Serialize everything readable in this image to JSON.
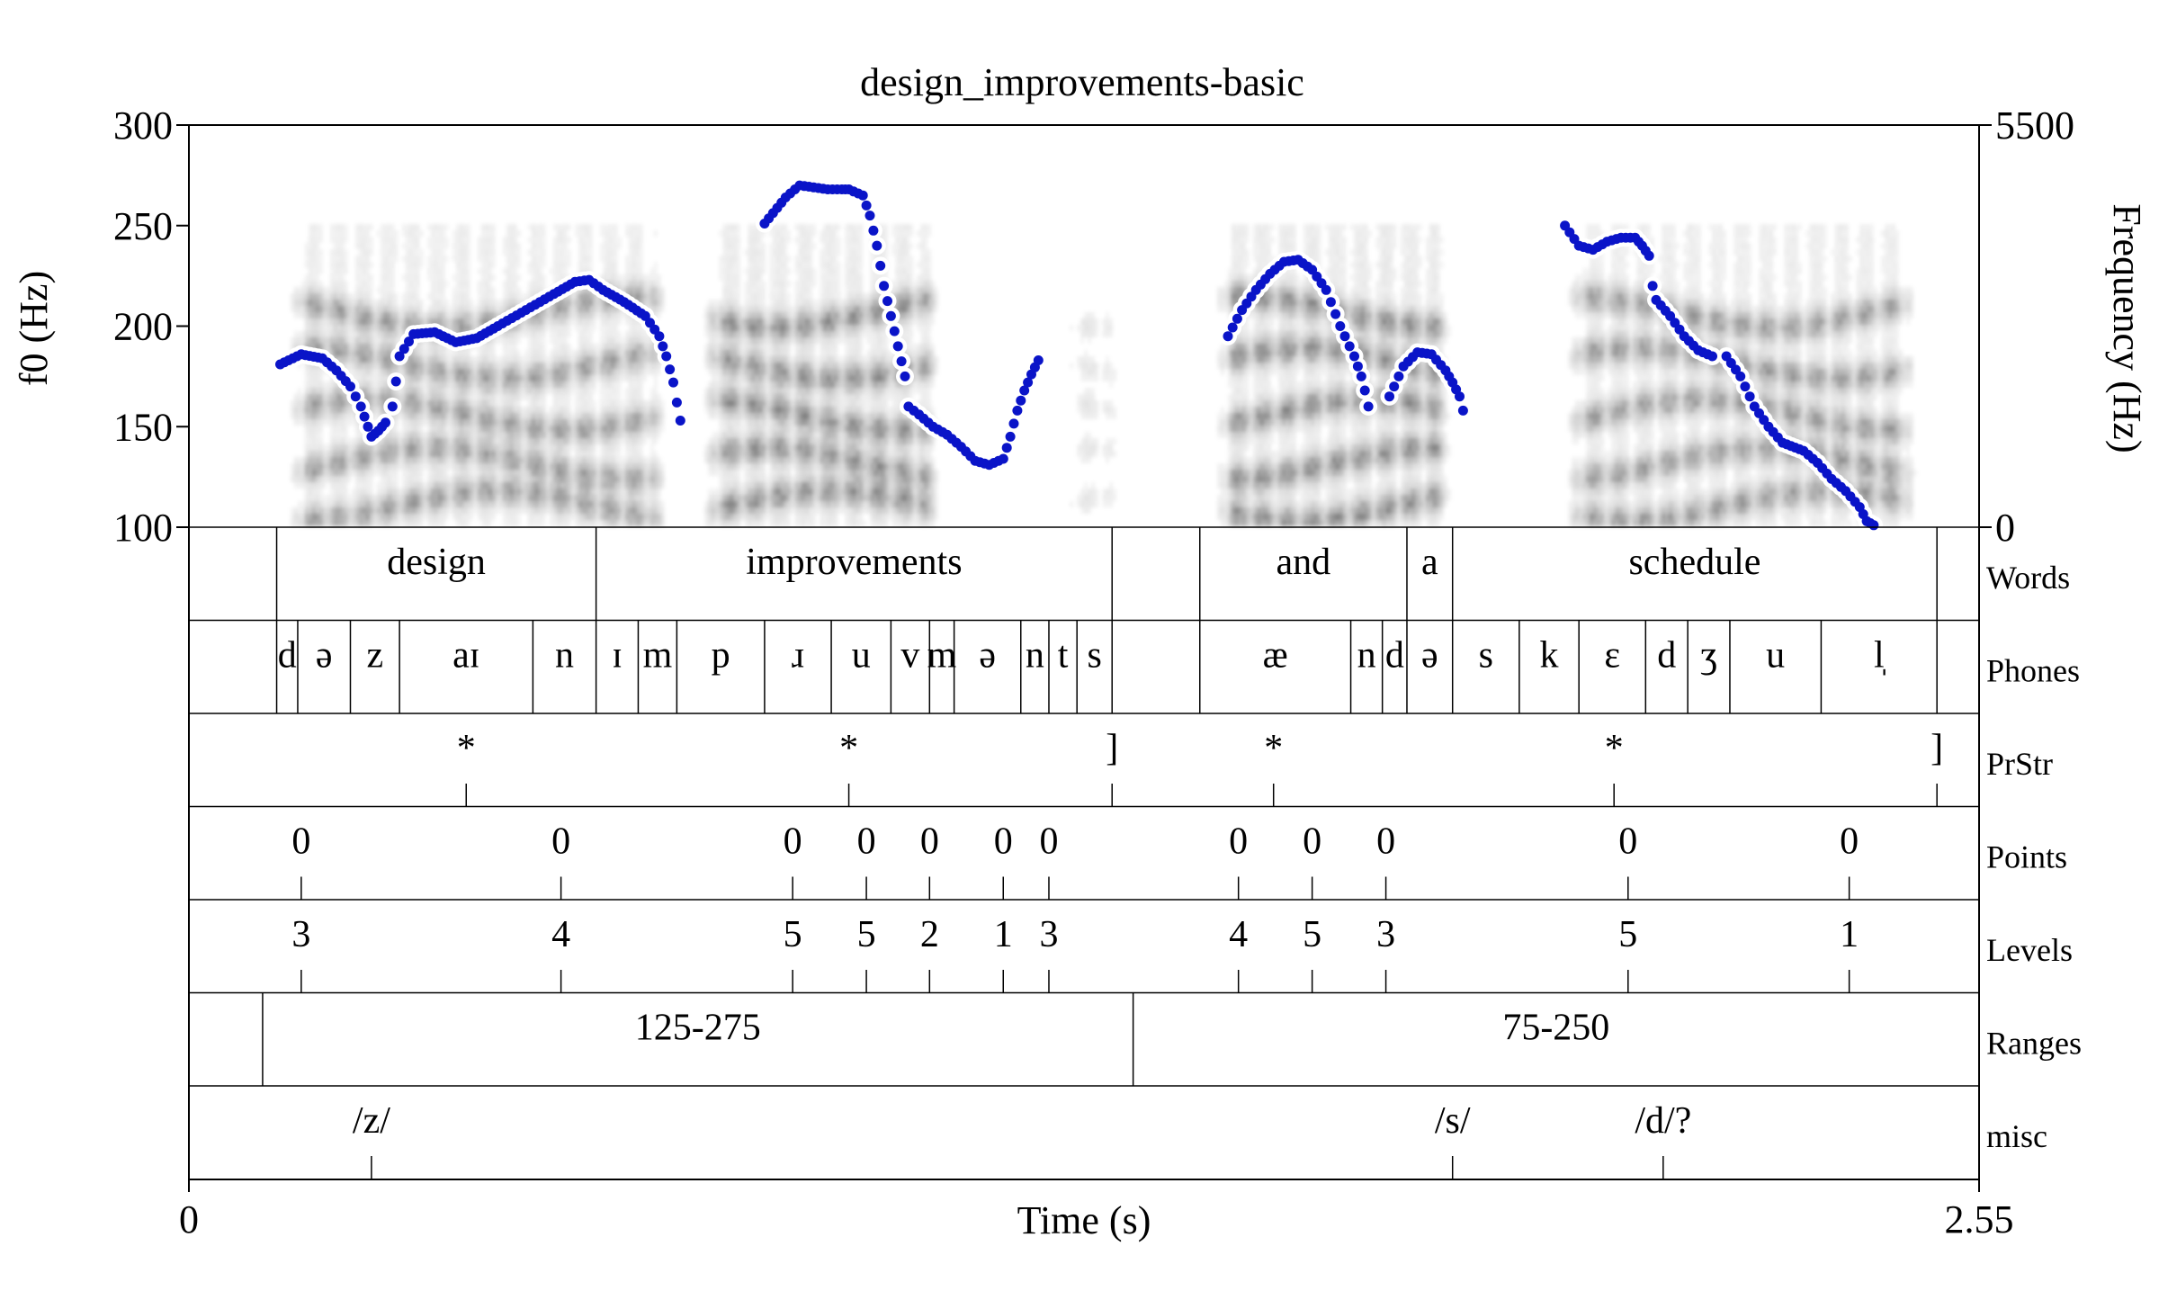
{
  "chart_data": {
    "type": "scatter",
    "title": "design_improvements-basic",
    "xlabel": "Time (s)",
    "ylabel": "f0 (Hz)",
    "ylabel_right": "Frequency (Hz)",
    "xlim": [
      0,
      2.55
    ],
    "ylim": [
      100,
      300
    ],
    "ylim_right": [
      0,
      5500
    ],
    "x_ticks": [
      "0",
      "2.55"
    ],
    "y_ticks": [
      {
        "value": 100,
        "label": "100"
      },
      {
        "value": 150,
        "label": "150"
      },
      {
        "value": 200,
        "label": "200"
      },
      {
        "value": 250,
        "label": "250"
      },
      {
        "value": 300,
        "label": "300"
      }
    ],
    "y_ticks_right": [
      {
        "value": 0,
        "label": "0"
      },
      {
        "value": 5500,
        "label": "5500"
      }
    ],
    "colors": {
      "pitch": "#0a14c8",
      "halo": "#ffffff",
      "spectrogram": "#000000"
    },
    "spectrogram_segments": [
      {
        "start": 0.14,
        "end": 0.68,
        "intensity": 0.75
      },
      {
        "start": 0.73,
        "end": 1.07,
        "intensity": 0.85
      },
      {
        "start": 1.24,
        "end": 1.33,
        "intensity": 0.2
      },
      {
        "start": 1.46,
        "end": 1.8,
        "intensity": 0.85
      },
      {
        "start": 1.96,
        "end": 2.46,
        "intensity": 0.75
      }
    ],
    "series": [
      {
        "segments": [
          [
            [
              0.13,
              181
            ],
            [
              0.16,
              186
            ],
            [
              0.19,
              184
            ],
            [
              0.21,
              178
            ],
            [
              0.23,
              170
            ],
            [
              0.245,
              160
            ],
            [
              0.255,
              150
            ],
            [
              0.26,
              145
            ],
            [
              0.27,
              148
            ],
            [
              0.28,
              152
            ]
          ],
          [
            [
              0.29,
              160
            ],
            [
              0.3,
              185
            ],
            [
              0.32,
              196
            ],
            [
              0.35,
              197
            ],
            [
              0.38,
              192
            ],
            [
              0.41,
              194
            ],
            [
              0.44,
              200
            ],
            [
              0.48,
              208
            ],
            [
              0.52,
              216
            ],
            [
              0.55,
              222
            ],
            [
              0.57,
              223
            ],
            [
              0.59,
              218
            ],
            [
              0.62,
              212
            ],
            [
              0.65,
              205
            ],
            [
              0.67,
              195
            ],
            [
              0.68,
              185
            ],
            [
              0.69,
              172
            ],
            [
              0.695,
              162
            ],
            [
              0.7,
              153
            ]
          ],
          [
            [
              0.82,
              251
            ],
            [
              0.85,
              264
            ],
            [
              0.87,
              270
            ],
            [
              0.89,
              269
            ],
            [
              0.91,
              268
            ],
            [
              0.93,
              268
            ],
            [
              0.94,
              268
            ],
            [
              0.96,
              265
            ],
            [
              0.97,
              255
            ],
            [
              0.98,
              240
            ],
            [
              0.99,
              220
            ],
            [
              1.0,
              205
            ],
            [
              1.01,
              190
            ],
            [
              1.02,
              175
            ],
            [
              1.025,
              160
            ],
            [
              1.04,
              156
            ],
            [
              1.06,
              150
            ],
            [
              1.08,
              146
            ],
            [
              1.1,
              140
            ],
            [
              1.12,
              133
            ],
            [
              1.14,
              131
            ],
            [
              1.16,
              134
            ],
            [
              1.17,
              145
            ],
            [
              1.18,
              158
            ],
            [
              1.19,
              168
            ],
            [
              1.2,
              176
            ],
            [
              1.21,
              183
            ]
          ],
          [
            [
              1.48,
              195
            ],
            [
              1.5,
              208
            ],
            [
              1.52,
              218
            ],
            [
              1.54,
              226
            ],
            [
              1.56,
              232
            ],
            [
              1.58,
              233
            ],
            [
              1.6,
              228
            ],
            [
              1.62,
              218
            ],
            [
              1.64,
              200
            ],
            [
              1.66,
              185
            ],
            [
              1.67,
              175
            ],
            [
              1.675,
              168
            ],
            [
              1.68,
              160
            ]
          ],
          [
            [
              1.71,
              165
            ],
            [
              1.73,
              180
            ],
            [
              1.75,
              187
            ],
            [
              1.77,
              186
            ],
            [
              1.79,
              178
            ],
            [
              1.8,
              172
            ],
            [
              1.81,
              165
            ],
            [
              1.815,
              158
            ]
          ],
          [
            [
              1.96,
              250
            ],
            [
              1.98,
              240
            ],
            [
              2.0,
              238
            ],
            [
              2.02,
              242
            ],
            [
              2.04,
              244
            ],
            [
              2.06,
              244
            ],
            [
              2.07,
              240
            ],
            [
              2.08,
              235
            ],
            [
              2.085,
              220
            ],
            [
              2.09,
              213
            ],
            [
              2.11,
              205
            ],
            [
              2.13,
              195
            ],
            [
              2.15,
              188
            ],
            [
              2.17,
              185
            ]
          ],
          [
            [
              2.19,
              185
            ],
            [
              2.21,
              175
            ],
            [
              2.23,
              160
            ],
            [
              2.25,
              150
            ],
            [
              2.27,
              142
            ],
            [
              2.3,
              138
            ],
            [
              2.32,
              132
            ],
            [
              2.34,
              124
            ],
            [
              2.36,
              118
            ],
            [
              2.38,
              110
            ],
            [
              2.39,
              103
            ],
            [
              2.4,
              101
            ]
          ]
        ]
      }
    ]
  },
  "tiers": [
    {
      "name": "Words",
      "type": "interval",
      "boundaries": [
        0.125,
        0.58,
        1.315,
        1.44,
        1.735,
        1.8,
        2.49
      ],
      "labels": [
        {
          "start": 0.125,
          "end": 0.58,
          "text": "design"
        },
        {
          "start": 0.58,
          "end": 1.315,
          "text": "improvements"
        },
        {
          "start": 1.44,
          "end": 1.735,
          "text": "and"
        },
        {
          "start": 1.735,
          "end": 1.8,
          "text": "a"
        },
        {
          "start": 1.8,
          "end": 2.49,
          "text": "schedule"
        }
      ]
    },
    {
      "name": "Phones",
      "type": "interval",
      "boundaries": [
        0.125,
        0.155,
        0.23,
        0.3,
        0.49,
        0.58,
        0.64,
        0.695,
        0.82,
        0.915,
        1.0,
        1.055,
        1.09,
        1.185,
        1.225,
        1.265,
        1.315,
        1.44,
        1.655,
        1.7,
        1.735,
        1.8,
        1.895,
        1.98,
        2.075,
        2.135,
        2.195,
        2.325,
        2.49
      ],
      "labels": [
        {
          "start": 0.125,
          "end": 0.155,
          "text": "d"
        },
        {
          "start": 0.155,
          "end": 0.23,
          "text": "ə"
        },
        {
          "start": 0.23,
          "end": 0.3,
          "text": "z"
        },
        {
          "start": 0.3,
          "end": 0.49,
          "text": "aɪ"
        },
        {
          "start": 0.49,
          "end": 0.58,
          "text": "n"
        },
        {
          "start": 0.58,
          "end": 0.64,
          "text": "ɪ"
        },
        {
          "start": 0.64,
          "end": 0.695,
          "text": "m"
        },
        {
          "start": 0.695,
          "end": 0.82,
          "text": "p"
        },
        {
          "start": 0.82,
          "end": 0.915,
          "text": "ɹ"
        },
        {
          "start": 0.915,
          "end": 1.0,
          "text": "u"
        },
        {
          "start": 1.0,
          "end": 1.055,
          "text": "v"
        },
        {
          "start": 1.055,
          "end": 1.09,
          "text": "m"
        },
        {
          "start": 1.09,
          "end": 1.185,
          "text": "ə"
        },
        {
          "start": 1.185,
          "end": 1.225,
          "text": "n"
        },
        {
          "start": 1.225,
          "end": 1.265,
          "text": "t"
        },
        {
          "start": 1.265,
          "end": 1.315,
          "text": "s"
        },
        {
          "start": 1.44,
          "end": 1.655,
          "text": "æ"
        },
        {
          "start": 1.655,
          "end": 1.7,
          "text": "n"
        },
        {
          "start": 1.7,
          "end": 1.735,
          "text": "d"
        },
        {
          "start": 1.735,
          "end": 1.8,
          "text": "ə"
        },
        {
          "start": 1.8,
          "end": 1.895,
          "text": "s"
        },
        {
          "start": 1.895,
          "end": 1.98,
          "text": "k"
        },
        {
          "start": 1.98,
          "end": 2.075,
          "text": "ɛ"
        },
        {
          "start": 2.075,
          "end": 2.135,
          "text": "d"
        },
        {
          "start": 2.135,
          "end": 2.195,
          "text": "ʒ"
        },
        {
          "start": 2.195,
          "end": 2.325,
          "text": "u"
        },
        {
          "start": 2.325,
          "end": 2.49,
          "text": "l̩"
        }
      ]
    },
    {
      "name": "PrStr",
      "type": "point",
      "points": [
        {
          "time": 0.395,
          "text": "*"
        },
        {
          "time": 0.94,
          "text": "*"
        },
        {
          "time": 1.315,
          "text": "]"
        },
        {
          "time": 1.545,
          "text": "*"
        },
        {
          "time": 2.03,
          "text": "*"
        },
        {
          "time": 2.49,
          "text": "]"
        }
      ]
    },
    {
      "name": "Points",
      "type": "point",
      "points": [
        {
          "time": 0.16,
          "text": "0"
        },
        {
          "time": 0.53,
          "text": "0"
        },
        {
          "time": 0.86,
          "text": "0"
        },
        {
          "time": 0.965,
          "text": "0"
        },
        {
          "time": 1.055,
          "text": "0"
        },
        {
          "time": 1.16,
          "text": "0"
        },
        {
          "time": 1.225,
          "text": "0"
        },
        {
          "time": 1.495,
          "text": "0"
        },
        {
          "time": 1.6,
          "text": "0"
        },
        {
          "time": 1.705,
          "text": "0"
        },
        {
          "time": 2.05,
          "text": "0"
        },
        {
          "time": 2.365,
          "text": "0"
        }
      ]
    },
    {
      "name": "Levels",
      "type": "point",
      "points": [
        {
          "time": 0.16,
          "text": "3"
        },
        {
          "time": 0.53,
          "text": "4"
        },
        {
          "time": 0.86,
          "text": "5"
        },
        {
          "time": 0.965,
          "text": "5"
        },
        {
          "time": 1.055,
          "text": "2"
        },
        {
          "time": 1.16,
          "text": "1"
        },
        {
          "time": 1.225,
          "text": "3"
        },
        {
          "time": 1.495,
          "text": "4"
        },
        {
          "time": 1.6,
          "text": "5"
        },
        {
          "time": 1.705,
          "text": "3"
        },
        {
          "time": 2.05,
          "text": "5"
        },
        {
          "time": 2.365,
          "text": "1"
        }
      ]
    },
    {
      "name": "Ranges",
      "type": "interval",
      "boundaries": [
        0.105,
        1.345
      ],
      "labels": [
        {
          "start": 0.105,
          "end": 1.345,
          "text": "125-275"
        },
        {
          "start": 1.345,
          "end": 2.55,
          "text": "75-250"
        }
      ]
    },
    {
      "name": "misc",
      "type": "point",
      "points": [
        {
          "time": 0.26,
          "text": "/z/"
        },
        {
          "time": 1.8,
          "text": "/s/"
        },
        {
          "time": 2.1,
          "text": "/d/?"
        }
      ]
    }
  ]
}
